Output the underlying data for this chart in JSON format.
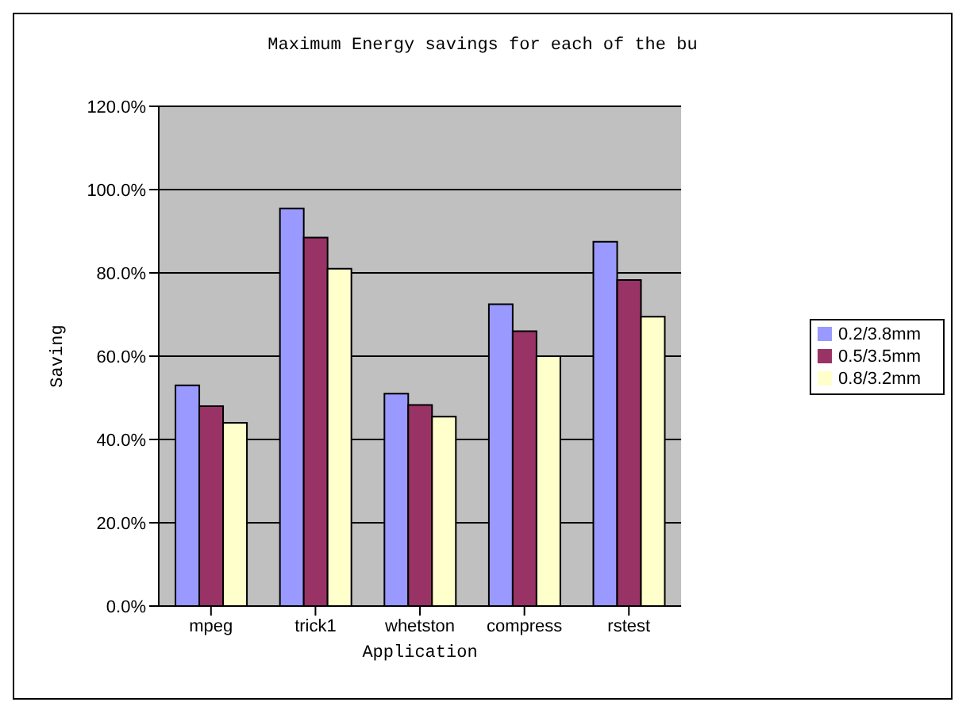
{
  "chart_data": {
    "type": "bar",
    "title": "Maximum Energy savings for each of the bu",
    "xlabel": "Application",
    "ylabel": "Saving",
    "categories": [
      "mpeg",
      "trick1",
      "whetston",
      "compress",
      "rstest"
    ],
    "series": [
      {
        "name": "0.2/3.8mm",
        "color": "#9999ff",
        "values": [
          53,
          95.5,
          51,
          72.5,
          87.5
        ]
      },
      {
        "name": "0.5/3.5mm",
        "color": "#993366",
        "values": [
          48,
          88.5,
          48.3,
          66,
          78.3
        ]
      },
      {
        "name": "0.8/3.2mm",
        "color": "#ffffcc",
        "values": [
          44,
          81,
          45.5,
          60,
          69.5
        ]
      }
    ],
    "ylim": [
      0,
      120
    ],
    "yticks": [
      {
        "value": 0,
        "label": "0.0%"
      },
      {
        "value": 20,
        "label": "20.0%"
      },
      {
        "value": 40,
        "label": "40.0%"
      },
      {
        "value": 60,
        "label": "60.0%"
      },
      {
        "value": 80,
        "label": "80.0%"
      },
      {
        "value": 100,
        "label": "100.0%"
      },
      {
        "value": 120,
        "label": "120.0%"
      }
    ],
    "grid": "y",
    "legend": "right"
  }
}
